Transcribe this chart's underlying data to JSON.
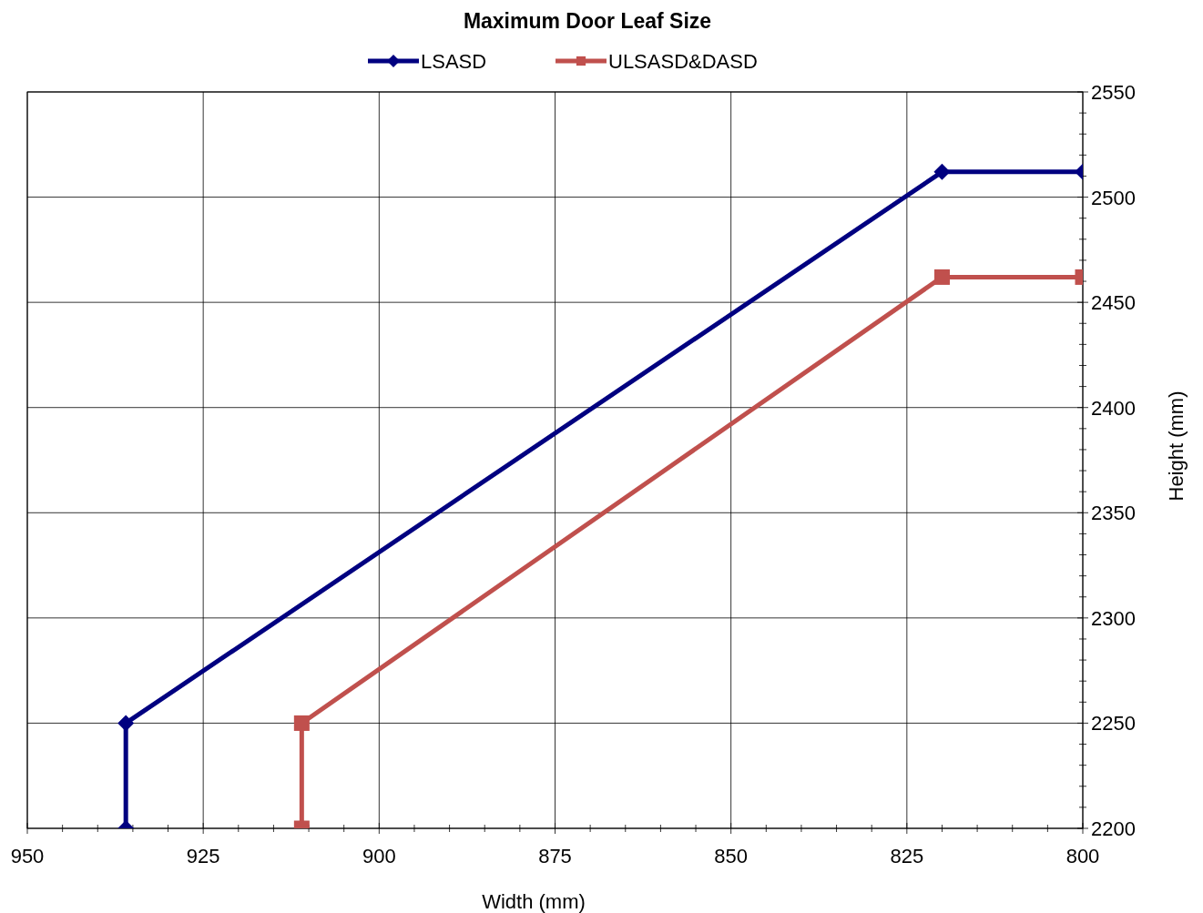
{
  "chart_data": {
    "type": "line",
    "title": "Maximum Door Leaf Size",
    "xlabel": "Width (mm)",
    "ylabel": "Height (mm)",
    "xlim": [
      950,
      800
    ],
    "xticks": [
      950,
      925,
      900,
      875,
      850,
      825,
      800
    ],
    "ylim": [
      2200,
      2550
    ],
    "yticks": [
      2200,
      2250,
      2300,
      2350,
      2400,
      2450,
      2500,
      2550
    ],
    "grid": true,
    "legend": "top",
    "series": [
      {
        "name": "LSASD",
        "color": "#000080",
        "marker": "diamond",
        "x": [
          936,
          936,
          820,
          800
        ],
        "values": [
          2200,
          2250,
          2512,
          2512
        ]
      },
      {
        "name": "ULSASD&DASD",
        "color": "#c0504d",
        "marker": "square",
        "x": [
          911,
          911,
          820,
          800
        ],
        "values": [
          2200,
          2250,
          2462,
          2462
        ]
      }
    ]
  }
}
